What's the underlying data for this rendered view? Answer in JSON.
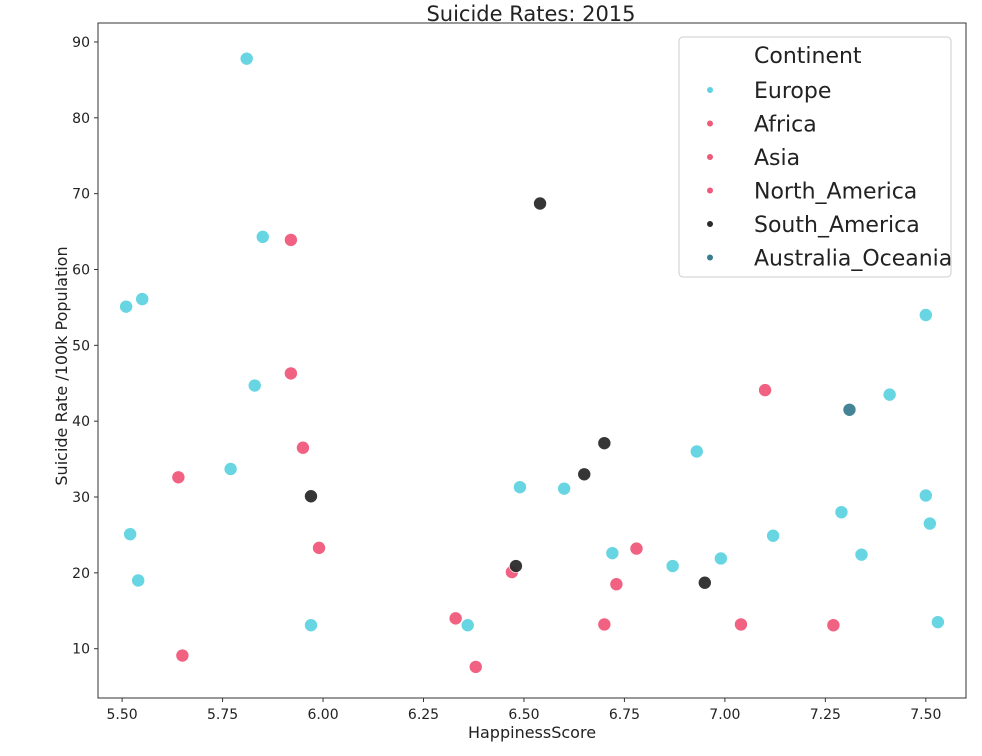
{
  "chart_data": {
    "type": "scatter",
    "title": "Suicide Rates: 2015",
    "xlabel": "HappinessScore",
    "ylabel": "Suicide Rate /100k Population",
    "xlim": [
      5.44,
      7.6
    ],
    "ylim": [
      3.5,
      92.5
    ],
    "xticks": [
      5.5,
      5.75,
      6.0,
      6.25,
      6.5,
      6.75,
      7.0,
      7.25,
      7.5
    ],
    "xtick_labels": [
      "5.50",
      "5.75",
      "6.00",
      "6.25",
      "6.50",
      "6.75",
      "7.00",
      "7.25",
      "7.50"
    ],
    "yticks": [
      10,
      20,
      30,
      40,
      50,
      60,
      70,
      80,
      90
    ],
    "ytick_labels": [
      "10",
      "20",
      "30",
      "40",
      "50",
      "60",
      "70",
      "80",
      "90"
    ],
    "grid": false,
    "legend": {
      "title": "Continent",
      "placement": "top-right"
    },
    "series": [
      {
        "name": "Europe",
        "color": "#5fd3e0",
        "points": [
          [
            5.81,
            87.8
          ],
          [
            5.85,
            64.3
          ],
          [
            5.51,
            55.1
          ],
          [
            5.55,
            56.1
          ],
          [
            5.83,
            44.7
          ],
          [
            5.77,
            33.7
          ],
          [
            5.52,
            25.1
          ],
          [
            5.54,
            19.0
          ],
          [
            5.97,
            13.1
          ],
          [
            6.36,
            13.1
          ],
          [
            6.49,
            31.3
          ],
          [
            6.6,
            31.1
          ],
          [
            6.72,
            22.6
          ],
          [
            6.87,
            20.9
          ],
          [
            6.93,
            36.0
          ],
          [
            6.99,
            21.9
          ],
          [
            7.12,
            24.9
          ],
          [
            7.29,
            28.0
          ],
          [
            7.34,
            22.4
          ],
          [
            7.41,
            43.5
          ],
          [
            7.5,
            54.0
          ],
          [
            7.5,
            30.2
          ],
          [
            7.51,
            26.5
          ],
          [
            7.53,
            13.5
          ]
        ]
      },
      {
        "name": "Africa",
        "color": "#f0597a",
        "points": [
          [
            5.65,
            9.1
          ]
        ]
      },
      {
        "name": "Asia",
        "color": "#f0597a",
        "points": [
          [
            5.92,
            63.9
          ],
          [
            5.92,
            46.3
          ],
          [
            5.95,
            36.5
          ],
          [
            5.99,
            23.3
          ],
          [
            5.64,
            32.6
          ],
          [
            6.33,
            14.0
          ],
          [
            6.38,
            7.6
          ],
          [
            6.7,
            13.2
          ],
          [
            6.73,
            18.5
          ],
          [
            6.78,
            23.2
          ],
          [
            7.04,
            13.2
          ],
          [
            7.1,
            44.1
          ],
          [
            7.27,
            13.1
          ]
        ]
      },
      {
        "name": "North_America",
        "color": "#f0597a",
        "points": [
          [
            6.47,
            20.1
          ]
        ]
      },
      {
        "name": "South_America",
        "color": "#2b2b2b",
        "points": [
          [
            6.54,
            68.7
          ],
          [
            5.97,
            30.1
          ],
          [
            6.48,
            20.9
          ],
          [
            6.65,
            33.0
          ],
          [
            6.7,
            37.1
          ],
          [
            6.95,
            18.7
          ]
        ]
      },
      {
        "name": "Australia_Oceania",
        "color": "#3a7d90",
        "points": [
          [
            7.31,
            41.5
          ]
        ]
      }
    ]
  }
}
